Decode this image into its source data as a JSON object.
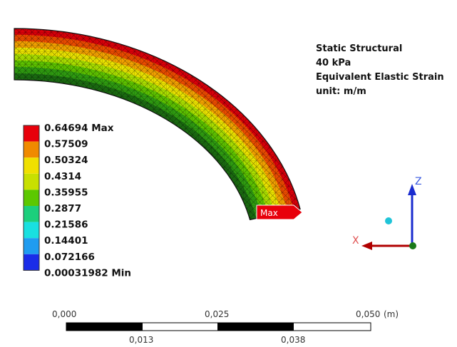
{
  "info": {
    "lines": [
      "Static Structural",
      "40 kPa",
      "Equivalent Elastic Strain",
      "unit: m/m"
    ]
  },
  "legend": {
    "labels": [
      "0.64694 Max",
      "0.57509",
      "0.50324",
      "0.4314",
      "0.35955",
      "0.2877",
      "0.21586",
      "0.14401",
      "0.072166",
      "0.00031982 Min"
    ],
    "colors": [
      "#e8000b",
      "#f08a00",
      "#f0e000",
      "#c8e000",
      "#5cc800",
      "#1ccf7c",
      "#19e0e0",
      "#1f9cf0",
      "#1a2ce8"
    ]
  },
  "probe": {
    "label": "Max"
  },
  "triad": {
    "x": "X",
    "z": "Z"
  },
  "scale": {
    "top": [
      "0,000",
      "0,025",
      "0,050"
    ],
    "unit": "(m)",
    "bottom": [
      "0,013",
      "0,038"
    ]
  }
}
